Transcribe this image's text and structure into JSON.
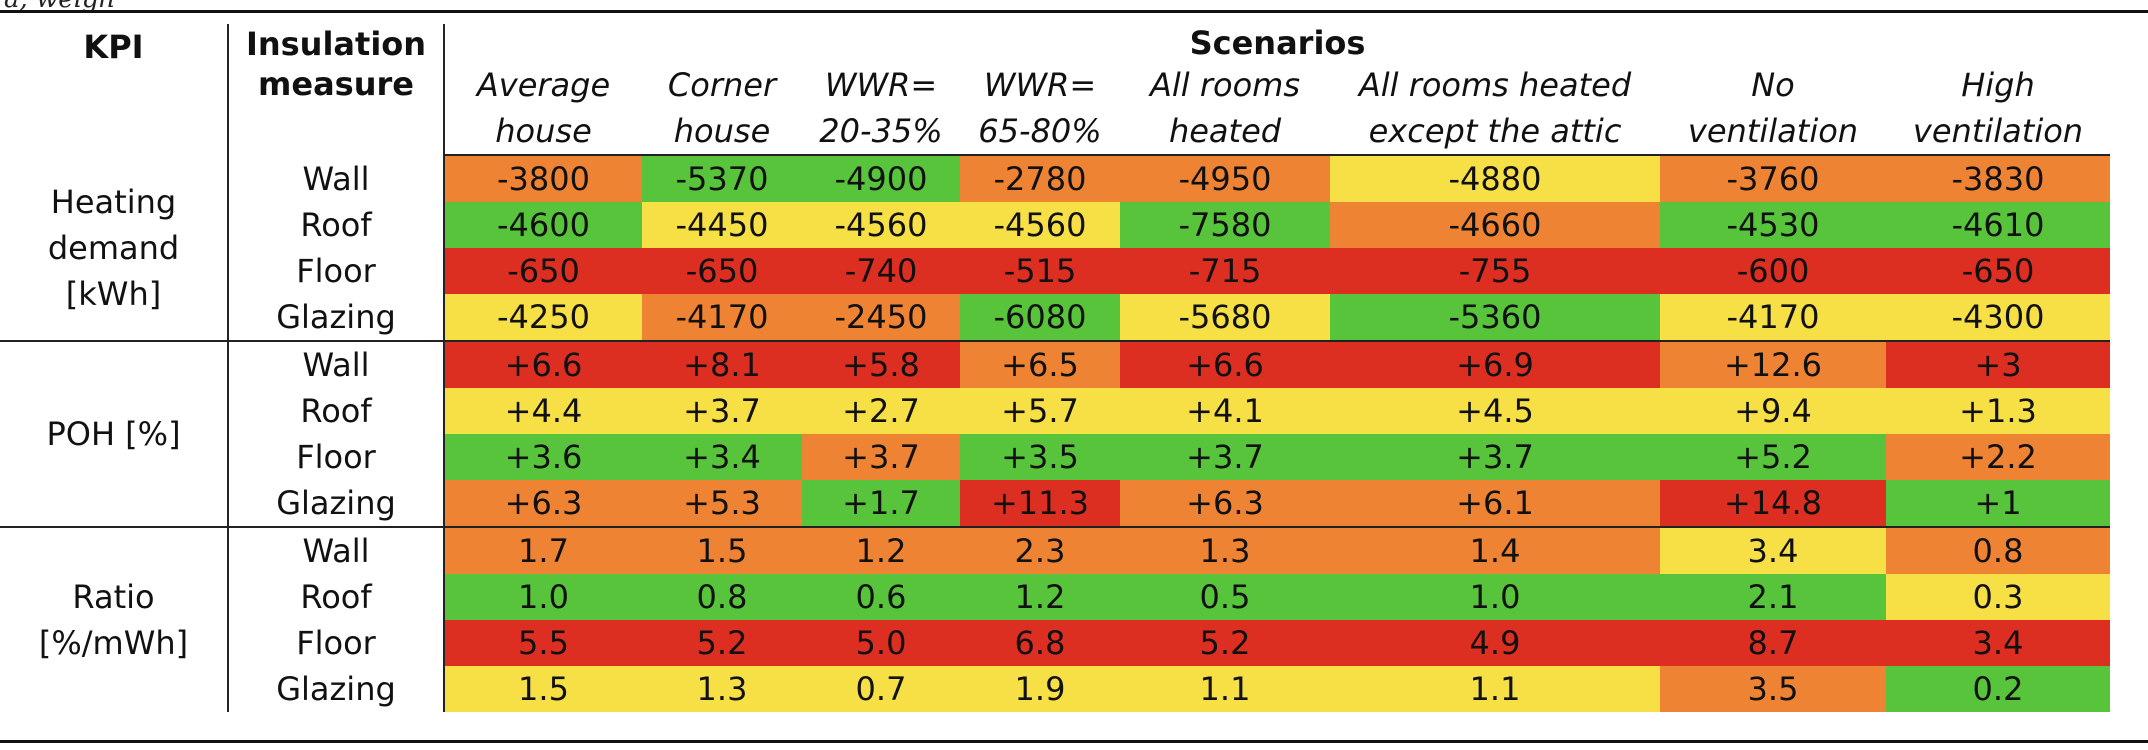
{
  "caption_fragment": "a, weigh",
  "header": {
    "kpi": "KPI",
    "insulation_line1": "Insulation",
    "insulation_line2": "measure",
    "scenarios": "Scenarios",
    "columns": [
      {
        "line1": "Average",
        "line2": "house"
      },
      {
        "line1": "Corner",
        "line2": "house"
      },
      {
        "line1": "WWR=",
        "line2": "20-35%"
      },
      {
        "line1": "WWR=",
        "line2": "65-80%"
      },
      {
        "line1": "All rooms",
        "line2": "heated"
      },
      {
        "line1": "All rooms heated",
        "line2": "except the attic"
      },
      {
        "line1": "No",
        "line2": "ventilation"
      },
      {
        "line1": "High",
        "line2": "ventilation"
      }
    ]
  },
  "colors": {
    "green": "#57c43b",
    "yellow": "#f7df46",
    "orange": "#ee8433",
    "red": "#dd2e22"
  },
  "groups": [
    {
      "kpi_lines": [
        "Heating",
        "demand",
        "[kWh]"
      ],
      "rows": [
        {
          "measure": "Wall",
          "values": [
            "-3800",
            "-5370",
            "-4900",
            "-2780",
            "-4950",
            "-4880",
            "-3760",
            "-3830"
          ],
          "colors": [
            "orange",
            "green",
            "green",
            "orange",
            "orange",
            "yellow",
            "orange",
            "orange"
          ]
        },
        {
          "measure": "Roof",
          "values": [
            "-4600",
            "-4450",
            "-4560",
            "-4560",
            "-7580",
            "-4660",
            "-4530",
            "-4610"
          ],
          "colors": [
            "green",
            "yellow",
            "yellow",
            "yellow",
            "green",
            "orange",
            "green",
            "green"
          ]
        },
        {
          "measure": "Floor",
          "values": [
            "-650",
            "-650",
            "-740",
            "-515",
            "-715",
            "-755",
            "-600",
            "-650"
          ],
          "colors": [
            "red",
            "red",
            "red",
            "red",
            "red",
            "red",
            "red",
            "red"
          ]
        },
        {
          "measure": "Glazing",
          "values": [
            "-4250",
            "-4170",
            "-2450",
            "-6080",
            "-5680",
            "-5360",
            "-4170",
            "-4300"
          ],
          "colors": [
            "yellow",
            "orange",
            "orange",
            "green",
            "yellow",
            "green",
            "yellow",
            "yellow"
          ]
        }
      ]
    },
    {
      "kpi_lines": [
        "POH [%]"
      ],
      "rows": [
        {
          "measure": "Wall",
          "values": [
            "+6.6",
            "+8.1",
            "+5.8",
            "+6.5",
            "+6.6",
            "+6.9",
            "+12.6",
            "+3"
          ],
          "colors": [
            "red",
            "red",
            "red",
            "orange",
            "red",
            "red",
            "orange",
            "red"
          ]
        },
        {
          "measure": "Roof",
          "values": [
            "+4.4",
            "+3.7",
            "+2.7",
            "+5.7",
            "+4.1",
            "+4.5",
            "+9.4",
            "+1.3"
          ],
          "colors": [
            "yellow",
            "yellow",
            "yellow",
            "yellow",
            "yellow",
            "yellow",
            "yellow",
            "yellow"
          ]
        },
        {
          "measure": "Floor",
          "values": [
            "+3.6",
            "+3.4",
            "+3.7",
            "+3.5",
            "+3.7",
            "+3.7",
            "+5.2",
            "+2.2"
          ],
          "colors": [
            "green",
            "green",
            "orange",
            "green",
            "green",
            "green",
            "green",
            "orange"
          ]
        },
        {
          "measure": "Glazing",
          "values": [
            "+6.3",
            "+5.3",
            "+1.7",
            "+11.3",
            "+6.3",
            "+6.1",
            "+14.8",
            "+1"
          ],
          "colors": [
            "orange",
            "orange",
            "green",
            "red",
            "orange",
            "orange",
            "red",
            "green"
          ]
        }
      ]
    },
    {
      "kpi_lines": [
        "Ratio",
        "[%/mWh]"
      ],
      "rows": [
        {
          "measure": "Wall",
          "values": [
            "1.7",
            "1.5",
            "1.2",
            "2.3",
            "1.3",
            "1.4",
            "3.4",
            "0.8"
          ],
          "colors": [
            "orange",
            "orange",
            "orange",
            "orange",
            "orange",
            "orange",
            "yellow",
            "orange"
          ]
        },
        {
          "measure": "Roof",
          "values": [
            "1.0",
            "0.8",
            "0.6",
            "1.2",
            "0.5",
            "1.0",
            "2.1",
            "0.3"
          ],
          "colors": [
            "green",
            "green",
            "green",
            "green",
            "green",
            "green",
            "green",
            "yellow"
          ]
        },
        {
          "measure": "Floor",
          "values": [
            "5.5",
            "5.2",
            "5.0",
            "6.8",
            "5.2",
            "4.9",
            "8.7",
            "3.4"
          ],
          "colors": [
            "red",
            "red",
            "red",
            "red",
            "red",
            "red",
            "red",
            "red"
          ]
        },
        {
          "measure": "Glazing",
          "values": [
            "1.5",
            "1.3",
            "0.7",
            "1.9",
            "1.1",
            "1.1",
            "3.5",
            "0.2"
          ],
          "colors": [
            "yellow",
            "yellow",
            "yellow",
            "yellow",
            "yellow",
            "yellow",
            "orange",
            "green"
          ]
        }
      ]
    }
  ]
}
